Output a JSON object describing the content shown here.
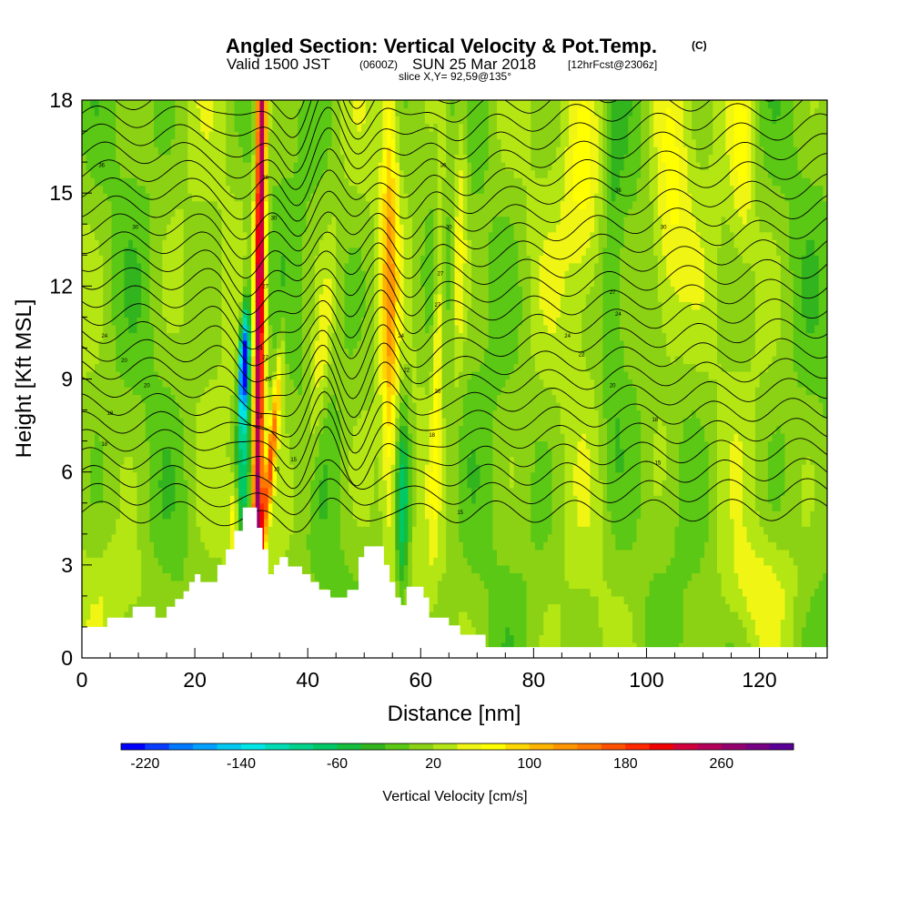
{
  "header": {
    "title": "Angled Section: Vertical Velocity & Pot.Temp.",
    "title_mark": "(C)",
    "subtitle_valid": "Valid 1500 JST",
    "subtitle_z": "(0600Z)",
    "subtitle_date": "SUN 25 Mar 2018",
    "subtitle_fcst": "[12hrFcst@2306z]",
    "slice": "slice X,Y= 92,59@135°"
  },
  "chart_data": {
    "type": "heatmap",
    "xlabel": "Distance [nm]",
    "ylabel": "Height [Kft MSL]",
    "xlim": [
      0,
      132
    ],
    "ylim": [
      0,
      18
    ],
    "x_ticks": [
      "0",
      "20",
      "40",
      "60",
      "80",
      "100",
      "120"
    ],
    "x_tick_values": [
      0,
      20,
      40,
      60,
      80,
      100,
      120
    ],
    "y_ticks": [
      "0",
      "3",
      "6",
      "9",
      "12",
      "15",
      "18"
    ],
    "y_tick_values": [
      0,
      3,
      6,
      9,
      12,
      15,
      18
    ],
    "colorbar": {
      "label": "Vertical Velocity [cm/s]",
      "min": -240,
      "max": 320,
      "step": 20,
      "tick_labels": [
        "-220",
        "-140",
        "-60",
        "20",
        "100",
        "180",
        "260"
      ],
      "tick_values": [
        -220,
        -140,
        -60,
        20,
        100,
        180,
        260
      ],
      "colors": [
        "#0000ff",
        "#0a3cff",
        "#0078ff",
        "#00a0ff",
        "#00c8f0",
        "#00e6e6",
        "#00dcb4",
        "#00d28c",
        "#00c864",
        "#14be3c",
        "#32b41e",
        "#5ac814",
        "#8cd214",
        "#b4e614",
        "#f0f514",
        "#ffff00",
        "#ffd700",
        "#ffb400",
        "#ff9600",
        "#ff7800",
        "#ff5000",
        "#ff2800",
        "#f00000",
        "#d2003c",
        "#b4005a",
        "#96006e",
        "#780082",
        "#5a0096"
      ]
    },
    "terrain": {
      "x": [
        0,
        4.5,
        4.5,
        9,
        9,
        13,
        13,
        15,
        15,
        16.5,
        16.5,
        18,
        18,
        19,
        19,
        20,
        20,
        21,
        21,
        24,
        24,
        25.5,
        25.5,
        27,
        27,
        28.5,
        28.5,
        31,
        31,
        32,
        32,
        33,
        33,
        34,
        34,
        35,
        35,
        36.5,
        36.5,
        39,
        39,
        40.5,
        40.5,
        42,
        42,
        44,
        44,
        47,
        47,
        49,
        49,
        50,
        50,
        53.5,
        53.5,
        54.5,
        54.5,
        55.5,
        55.5,
        56.5,
        56.5,
        57.5,
        57.5,
        60.5,
        60.5,
        61.5,
        61.5,
        65,
        65,
        67,
        67,
        71.5,
        71.5,
        132
      ],
      "y": [
        1,
        1,
        1.3,
        1.3,
        1.65,
        1.65,
        1.3,
        1.3,
        1.65,
        1.65,
        1.9,
        1.9,
        2.15,
        2.15,
        2.45,
        2.45,
        2.7,
        2.7,
        2.45,
        2.45,
        3.0,
        3.0,
        3.5,
        3.5,
        4.1,
        4.1,
        4.85,
        4.85,
        4.2,
        4.2,
        3.5,
        3.5,
        2.7,
        2.7,
        3.0,
        3.0,
        3.25,
        3.25,
        2.95,
        2.95,
        2.7,
        2.7,
        2.45,
        2.45,
        2.2,
        2.2,
        1.95,
        1.95,
        2.2,
        2.2,
        3.25,
        3.25,
        3.6,
        3.6,
        3.0,
        3.0,
        2.45,
        2.45,
        1.95,
        1.95,
        1.7,
        1.7,
        2.3,
        2.3,
        1.95,
        1.95,
        1.3,
        1.3,
        1.05,
        1.05,
        0.75,
        0.75,
        0.35,
        0.35
      ]
    },
    "contour_labels": [
      {
        "x": 3.5,
        "y": 15.9,
        "text": "36"
      },
      {
        "x": 9.5,
        "y": 13.9,
        "text": "30"
      },
      {
        "x": 4,
        "y": 10.4,
        "text": "24"
      },
      {
        "x": 7.5,
        "y": 9.6,
        "text": "20"
      },
      {
        "x": 11.5,
        "y": 8.8,
        "text": "20"
      },
      {
        "x": 5,
        "y": 7.9,
        "text": "18"
      },
      {
        "x": 4,
        "y": 6.9,
        "text": "18"
      },
      {
        "x": 32.5,
        "y": 15.5,
        "text": "36"
      },
      {
        "x": 34,
        "y": 14.2,
        "text": "30"
      },
      {
        "x": 32.5,
        "y": 12,
        "text": "27"
      },
      {
        "x": 31.5,
        "y": 10,
        "text": "24"
      },
      {
        "x": 32.5,
        "y": 9.7,
        "text": "22"
      },
      {
        "x": 33,
        "y": 9,
        "text": "20"
      },
      {
        "x": 31.5,
        "y": 7.8,
        "text": "18"
      },
      {
        "x": 37.5,
        "y": 6.4,
        "text": "15"
      },
      {
        "x": 34.5,
        "y": 6.1,
        "text": "15"
      },
      {
        "x": 64,
        "y": 15.9,
        "text": "36"
      },
      {
        "x": 65,
        "y": 13.9,
        "text": "30"
      },
      {
        "x": 63.5,
        "y": 12.4,
        "text": "27"
      },
      {
        "x": 63,
        "y": 11.4,
        "text": "27"
      },
      {
        "x": 56.5,
        "y": 10.4,
        "text": "24"
      },
      {
        "x": 57.5,
        "y": 9.3,
        "text": "22"
      },
      {
        "x": 63,
        "y": 8.6,
        "text": "20"
      },
      {
        "x": 62,
        "y": 7.2,
        "text": "18"
      },
      {
        "x": 67,
        "y": 4.7,
        "text": "15"
      },
      {
        "x": 95,
        "y": 15.1,
        "text": "36"
      },
      {
        "x": 103,
        "y": 13.9,
        "text": "30"
      },
      {
        "x": 94,
        "y": 11.8,
        "text": "27"
      },
      {
        "x": 95,
        "y": 11.1,
        "text": "24"
      },
      {
        "x": 86,
        "y": 10.4,
        "text": "24"
      },
      {
        "x": 88.5,
        "y": 9.8,
        "text": "22"
      },
      {
        "x": 94,
        "y": 8.8,
        "text": "20"
      },
      {
        "x": 101.5,
        "y": 7.7,
        "text": "18"
      },
      {
        "x": 102,
        "y": 6.3,
        "text": "15"
      }
    ]
  }
}
